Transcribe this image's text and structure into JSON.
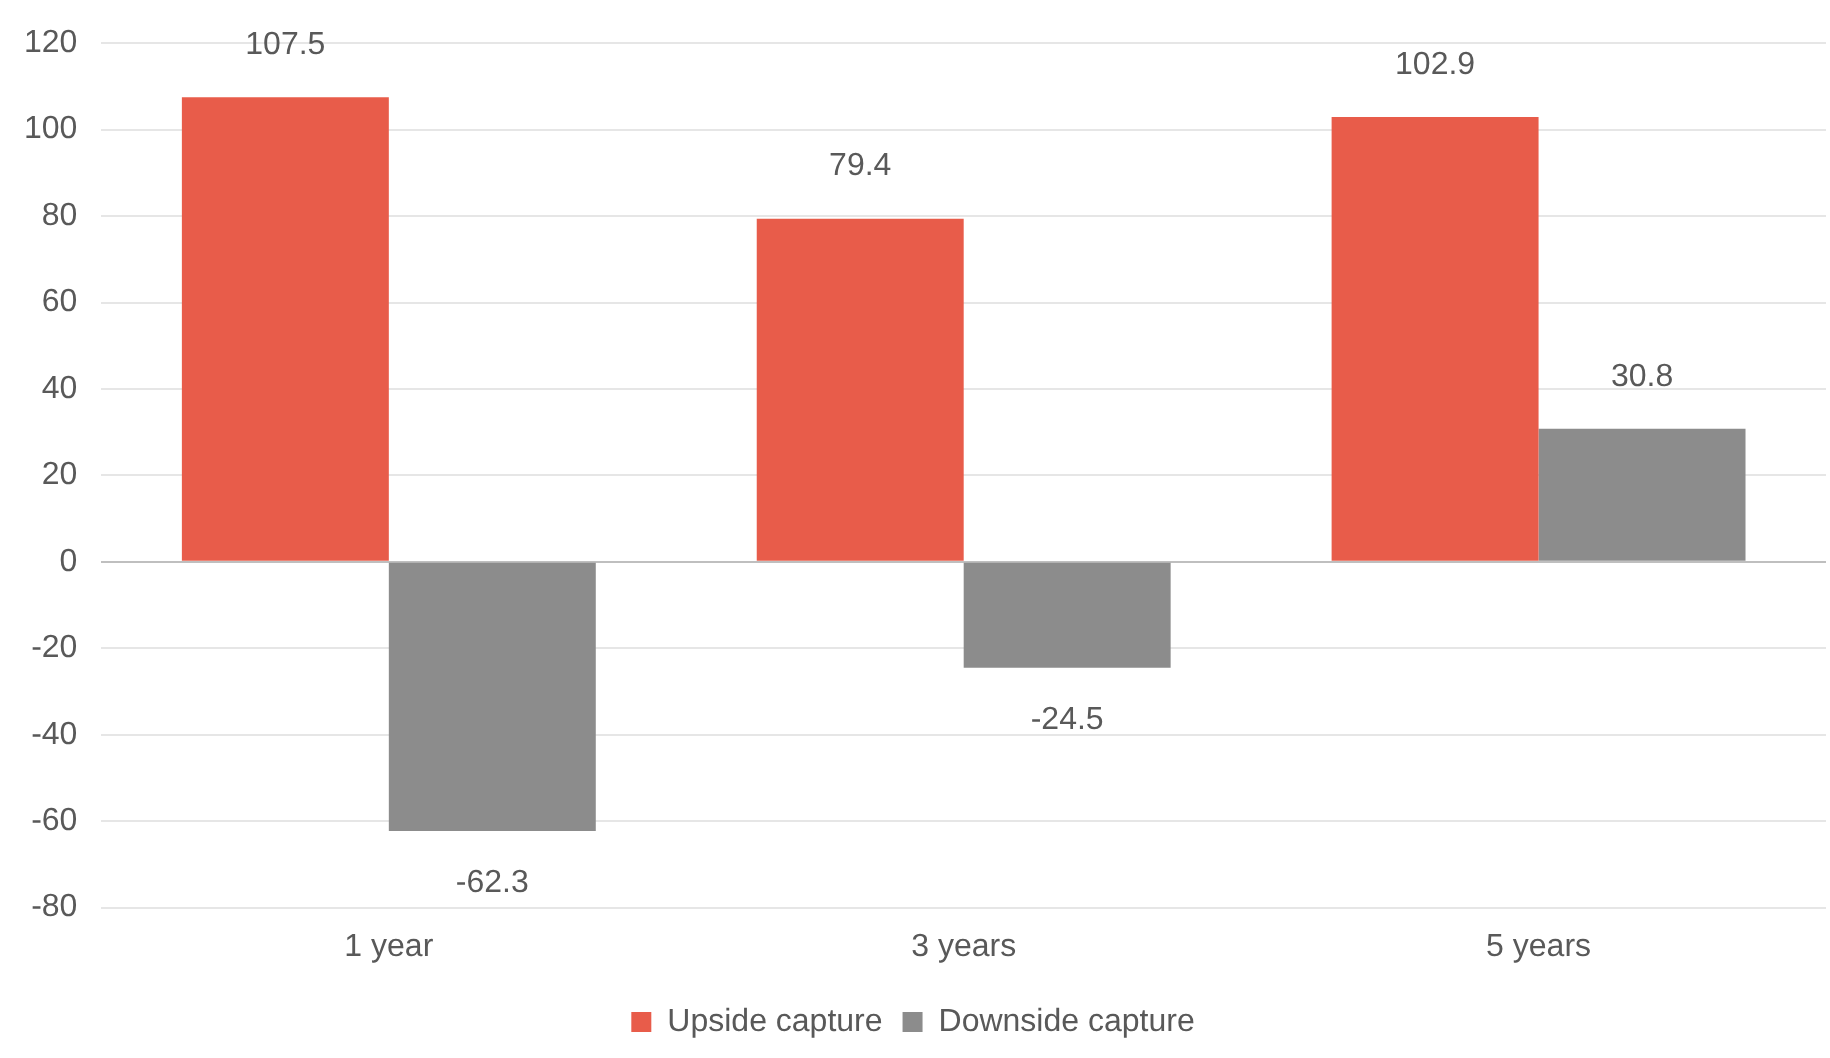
{
  "chart_data": {
    "type": "bar",
    "categories": [
      "1 year",
      "3 years",
      "5 years"
    ],
    "series": [
      {
        "name": "Upside capture",
        "color": "#e85c4a",
        "values": [
          107.5,
          79.4,
          102.9
        ]
      },
      {
        "name": "Downside capture",
        "color": "#8c8c8c",
        "values": [
          -62.3,
          -24.5,
          30.8
        ]
      }
    ],
    "ylim": [
      -80,
      120
    ],
    "yticks": [
      -80,
      -60,
      -40,
      -20,
      0,
      20,
      40,
      60,
      80,
      100,
      120
    ],
    "grid": "y",
    "legend": "bottom",
    "data_labels": true
  }
}
